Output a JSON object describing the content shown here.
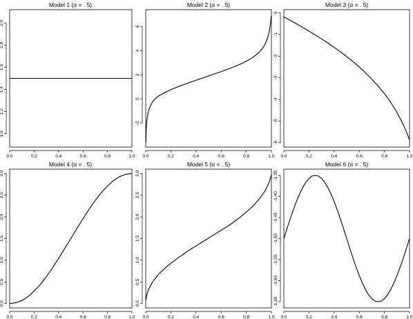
{
  "chart_data": [
    {
      "type": "line",
      "title": "Model 1 (α = . 5)",
      "xlim": [
        0,
        1
      ],
      "ylim": [
        0.88,
        2.12
      ],
      "xticks": [
        0.0,
        0.2,
        0.4,
        0.6,
        0.8,
        1.0
      ],
      "xtick_labels": [
        "0.0",
        "0.2",
        "0.4",
        "0.6",
        "0.8",
        "1.0"
      ],
      "yticks": [
        1.0,
        1.2,
        1.4,
        1.6,
        1.8,
        2.0
      ],
      "ytick_labels": [
        "1.0",
        "1.2",
        "1.4",
        "1.6",
        "1.8",
        "2.0"
      ],
      "grid": false,
      "series": [
        {
          "x": [
            0.0,
            0.25,
            0.5,
            0.75,
            1.0
          ],
          "y": [
            1.5,
            1.5,
            1.5,
            1.5,
            1.5
          ]
        }
      ]
    },
    {
      "type": "line",
      "title": "Model 2 (α = . 5)",
      "xlim": [
        0,
        1
      ],
      "ylim": [
        -4.0,
        7.4
      ],
      "xticks": [
        0.0,
        0.2,
        0.4,
        0.6,
        0.8,
        1.0
      ],
      "xtick_labels": [
        "0.0",
        "0.2",
        "0.4",
        "0.6",
        "0.8",
        "1.0"
      ],
      "yticks": [
        -2,
        0,
        2,
        4,
        6
      ],
      "ytick_labels": [
        "-2",
        "0",
        "2",
        "4",
        "6"
      ],
      "grid": false,
      "series": [
        {
          "x": [
            0.001,
            0.003,
            0.006,
            0.01,
            0.02,
            0.03,
            0.05,
            0.07,
            0.1,
            0.15,
            0.2,
            0.25,
            0.3,
            0.35,
            0.4,
            0.45,
            0.5,
            0.55,
            0.6,
            0.65,
            0.7,
            0.75,
            0.8,
            0.85,
            0.9,
            0.93,
            0.95,
            0.97,
            0.98,
            0.99,
            0.995,
            0.999
          ],
          "y": [
            -3.6,
            -2.8,
            -2.2,
            -1.7,
            -1.1,
            -0.75,
            -0.32,
            -0.05,
            0.22,
            0.52,
            0.76,
            0.98,
            1.18,
            1.36,
            1.54,
            1.72,
            1.9,
            2.08,
            2.26,
            2.45,
            2.65,
            2.87,
            3.12,
            3.42,
            3.83,
            4.2,
            4.55,
            5.05,
            5.45,
            6.05,
            6.45,
            6.9
          ]
        }
      ]
    },
    {
      "type": "line",
      "title": "Model 3 (α = . 5)",
      "xlim": [
        0,
        1
      ],
      "ylim": [
        -6.2,
        0.15
      ],
      "xticks": [
        0.0,
        0.2,
        0.4,
        0.6,
        0.8,
        1.0
      ],
      "xtick_labels": [
        "0.0",
        "0.2",
        "0.4",
        "0.6",
        "0.8",
        "1.0"
      ],
      "yticks": [
        -6,
        -5,
        -4,
        -3,
        -2,
        -1,
        0
      ],
      "ytick_labels": [
        "-6",
        "-5",
        "-4",
        "-3",
        "-2",
        "-1",
        "0"
      ],
      "grid": false,
      "series": [
        {
          "x": [
            0.0,
            0.05,
            0.1,
            0.15,
            0.2,
            0.25,
            0.3,
            0.35,
            0.4,
            0.45,
            0.5,
            0.55,
            0.6,
            0.65,
            0.7,
            0.75,
            0.8,
            0.85,
            0.9,
            0.93,
            0.95,
            0.97,
            0.98,
            0.99,
            0.995,
            0.999
          ],
          "y": [
            -0.18,
            -0.34,
            -0.5,
            -0.67,
            -0.84,
            -1.02,
            -1.2,
            -1.39,
            -1.59,
            -1.8,
            -2.02,
            -2.25,
            -2.5,
            -2.77,
            -3.06,
            -3.38,
            -3.73,
            -4.13,
            -4.6,
            -4.93,
            -5.17,
            -5.43,
            -5.57,
            -5.71,
            -5.79,
            -5.86
          ]
        }
      ]
    },
    {
      "type": "line",
      "title": "Model 4 (α = . 5)",
      "xlim": [
        0,
        1
      ],
      "ylim": [
        -0.1,
        3.1
      ],
      "xticks": [
        0.0,
        0.2,
        0.4,
        0.6,
        0.8,
        1.0
      ],
      "xtick_labels": [
        "0.0",
        "0.2",
        "0.4",
        "0.6",
        "0.8",
        "1.0"
      ],
      "yticks": [
        0.0,
        0.5,
        1.0,
        1.5,
        2.0,
        2.5,
        3.0
      ],
      "ytick_labels": [
        "0.0",
        "0.5",
        "1.0",
        "1.5",
        "2.0",
        "2.5",
        "3.0"
      ],
      "grid": false,
      "series": [
        {
          "x": [
            0.0,
            0.05,
            0.1,
            0.15,
            0.2,
            0.25,
            0.3,
            0.35,
            0.4,
            0.45,
            0.5,
            0.55,
            0.6,
            0.65,
            0.7,
            0.75,
            0.8,
            0.85,
            0.9,
            0.95,
            1.0
          ],
          "y": [
            0.0,
            0.02,
            0.07,
            0.16,
            0.29,
            0.44,
            0.62,
            0.82,
            1.04,
            1.27,
            1.5,
            1.73,
            1.96,
            2.18,
            2.38,
            2.56,
            2.71,
            2.84,
            2.93,
            2.98,
            3.0
          ]
        }
      ]
    },
    {
      "type": "line",
      "title": "Model 5 (α = . 5)",
      "xlim": [
        0,
        1
      ],
      "ylim": [
        -0.1,
        3.1
      ],
      "xticks": [
        0.0,
        0.2,
        0.4,
        0.6,
        0.8,
        1.0
      ],
      "xtick_labels": [
        "0.0",
        "0.2",
        "0.4",
        "0.6",
        "0.8",
        "1.0"
      ],
      "yticks": [
        0.0,
        0.5,
        1.0,
        1.5,
        2.0,
        2.5,
        3.0
      ],
      "ytick_labels": [
        "0.0",
        "0.5",
        "1.0",
        "1.5",
        "2.0",
        "2.5",
        "3.0"
      ],
      "grid": false,
      "series": [
        {
          "x": [
            0.0,
            0.01,
            0.02,
            0.05,
            0.1,
            0.15,
            0.2,
            0.25,
            0.3,
            0.35,
            0.4,
            0.45,
            0.5,
            0.55,
            0.6,
            0.65,
            0.7,
            0.75,
            0.8,
            0.85,
            0.9,
            0.95,
            0.98,
            1.0
          ],
          "y": [
            0.07,
            0.22,
            0.31,
            0.48,
            0.67,
            0.81,
            0.93,
            1.04,
            1.14,
            1.24,
            1.33,
            1.42,
            1.51,
            1.6,
            1.69,
            1.78,
            1.88,
            1.99,
            2.11,
            2.24,
            2.4,
            2.6,
            2.78,
            2.97
          ]
        }
      ]
    },
    {
      "type": "line",
      "title": "Model 6 (α = . 5)",
      "xlim": [
        0,
        1
      ],
      "ylim": [
        -1.665,
        -1.335
      ],
      "xticks": [
        0.0,
        0.2,
        0.4,
        0.6,
        0.8,
        1.0
      ],
      "xtick_labels": [
        "0.0",
        "0.2",
        "0.4",
        "0.6",
        "0.8",
        "1.0"
      ],
      "yticks": [
        -1.65,
        -1.6,
        -1.55,
        -1.5,
        -1.45,
        -1.4,
        -1.35
      ],
      "ytick_labels": [
        "-1.65",
        "-1.60",
        "-1.55",
        "-1.50",
        "-1.45",
        "-1.40",
        "-1.35"
      ],
      "grid": false,
      "series": [
        {
          "x": [
            0.0,
            0.025,
            0.05,
            0.075,
            0.1,
            0.125,
            0.15,
            0.175,
            0.2,
            0.225,
            0.25,
            0.275,
            0.3,
            0.325,
            0.35,
            0.375,
            0.4,
            0.425,
            0.45,
            0.475,
            0.5,
            0.525,
            0.55,
            0.575,
            0.6,
            0.625,
            0.65,
            0.675,
            0.7,
            0.725,
            0.75,
            0.775,
            0.8,
            0.825,
            0.85,
            0.875,
            0.9,
            0.925,
            0.95,
            0.975,
            1.0
          ],
          "y": [
            -1.5,
            -1.4765,
            -1.4536,
            -1.4319,
            -1.4118,
            -1.3939,
            -1.3786,
            -1.3662,
            -1.357,
            -1.3512,
            -1.35,
            -1.3512,
            -1.357,
            -1.3662,
            -1.3786,
            -1.3939,
            -1.4118,
            -1.4319,
            -1.4536,
            -1.4765,
            -1.5,
            -1.5235,
            -1.5464,
            -1.5681,
            -1.5882,
            -1.6061,
            -1.6214,
            -1.6338,
            -1.643,
            -1.6488,
            -1.65,
            -1.6488,
            -1.643,
            -1.6338,
            -1.6214,
            -1.6061,
            -1.5882,
            -1.5681,
            -1.5464,
            -1.5235,
            -1.5
          ]
        }
      ]
    }
  ]
}
